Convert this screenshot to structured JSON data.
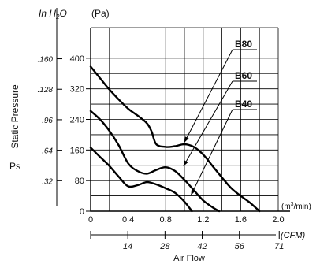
{
  "chart_data": {
    "type": "line",
    "x_axis": {
      "label": "Air Flow",
      "unit_primary": "(m³/min)",
      "unit_primary_base": "(m",
      "unit_primary_sup": "3",
      "unit_primary_tail": "/min)",
      "ticks": [
        0,
        0.4,
        0.8,
        1.2,
        1.6,
        2.0
      ],
      "tick_labels": [
        "0",
        "0.4",
        "0.8",
        "1.2",
        "1.6",
        "2.0"
      ],
      "range": [
        0,
        2.0
      ],
      "secondary": {
        "unit": "(CFM)",
        "ticks": [
          14,
          28,
          42,
          56,
          71
        ],
        "tick_labels": [
          "14",
          "28",
          "42",
          "56",
          "71"
        ]
      }
    },
    "y_axis": {
      "label": "Static Pressure",
      "symbol": "Ps",
      "unit_primary": "(Pa)",
      "ticks": [
        0,
        80,
        160,
        240,
        320,
        400
      ],
      "tick_labels": [
        "0",
        "80",
        "160",
        "240",
        "320",
        "400"
      ],
      "range": [
        0,
        480
      ],
      "secondary": {
        "unit": "In H₂O",
        "unit_base": "In H",
        "unit_sub": "2",
        "unit_tail": "O",
        "ticks": [
          0.32,
          0.64,
          0.96,
          1.28,
          1.6
        ],
        "tick_labels": [
          ".32",
          ".64",
          ".96",
          ".128",
          ".160"
        ]
      }
    },
    "grid": true,
    "series": [
      {
        "name": "B80",
        "x": [
          0,
          0.1,
          0.2,
          0.3,
          0.4,
          0.5,
          0.6,
          0.65,
          0.7,
          0.8,
          0.9,
          1.0,
          1.1,
          1.2,
          1.3,
          1.4,
          1.5,
          1.6,
          1.7,
          1.8
        ],
        "y": [
          378,
          348,
          318,
          292,
          268,
          250,
          230,
          208,
          175,
          168,
          170,
          175,
          168,
          148,
          118,
          88,
          60,
          40,
          22,
          0
        ]
      },
      {
        "name": "B60",
        "x": [
          0,
          0.1,
          0.2,
          0.3,
          0.4,
          0.5,
          0.6,
          0.7,
          0.8,
          0.9,
          1.0,
          1.1,
          1.2,
          1.3,
          1.37
        ],
        "y": [
          262,
          240,
          210,
          172,
          125,
          105,
          98,
          108,
          115,
          105,
          82,
          55,
          28,
          10,
          0
        ]
      },
      {
        "name": "B40",
        "x": [
          0,
          0.1,
          0.2,
          0.3,
          0.4,
          0.5,
          0.6,
          0.7,
          0.8,
          0.9,
          1.0,
          1.08
        ],
        "y": [
          166,
          142,
          118,
          90,
          65,
          68,
          76,
          70,
          60,
          48,
          25,
          0
        ]
      }
    ],
    "annotations": [
      {
        "text": "B80",
        "series": "B80",
        "points_to": [
          1.0,
          180
        ]
      },
      {
        "text": "B60",
        "series": "B60",
        "points_to": [
          0.99,
          118
        ]
      },
      {
        "text": "B40",
        "series": "B40",
        "points_to": [
          1.07,
          42
        ]
      }
    ]
  }
}
